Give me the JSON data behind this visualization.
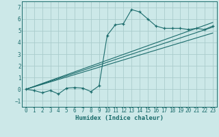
{
  "xlabel": "Humidex (Indice chaleur)",
  "ylabel": "",
  "background_color": "#cce8e8",
  "grid_color": "#aacccc",
  "line_color": "#1a6b6b",
  "xlim": [
    -0.5,
    23.5
  ],
  "ylim": [
    -1.5,
    7.5
  ],
  "xticks": [
    0,
    1,
    2,
    3,
    4,
    5,
    6,
    7,
    8,
    9,
    10,
    11,
    12,
    13,
    14,
    15,
    16,
    17,
    18,
    19,
    20,
    21,
    22,
    23
  ],
  "yticks": [
    -1,
    0,
    1,
    2,
    3,
    4,
    5,
    6,
    7
  ],
  "main_x": [
    0,
    1,
    2,
    3,
    4,
    5,
    6,
    7,
    8,
    9,
    10,
    11,
    12,
    13,
    14,
    15,
    16,
    17,
    18,
    19,
    20,
    21,
    22,
    23
  ],
  "main_y": [
    0.0,
    -0.1,
    -0.3,
    -0.1,
    -0.4,
    0.1,
    0.15,
    0.1,
    -0.2,
    0.3,
    4.6,
    5.5,
    5.6,
    6.8,
    6.6,
    6.0,
    5.4,
    5.2,
    5.2,
    5.2,
    5.1,
    5.2,
    5.1,
    5.4
  ],
  "line1_x": [
    0,
    23
  ],
  "line1_y": [
    0.0,
    5.3
  ],
  "line2_x": [
    0,
    23
  ],
  "line2_y": [
    0.0,
    4.8
  ],
  "line3_x": [
    0,
    23
  ],
  "line3_y": [
    0.0,
    5.7
  ]
}
